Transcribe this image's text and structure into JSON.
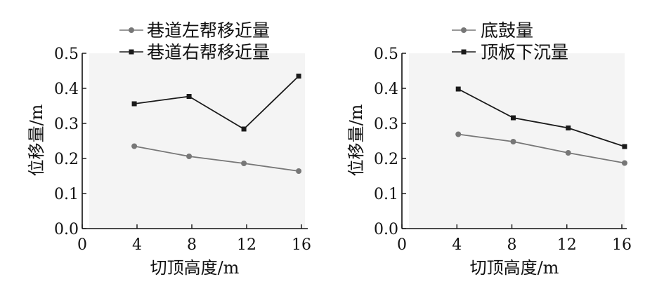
{
  "chart_data": [
    {
      "type": "line",
      "xlabel": "切顶高度/m",
      "ylabel": "位移量/m",
      "xlim": [
        0,
        16
      ],
      "ylim": [
        0.0,
        0.5
      ],
      "xticks": [
        "0",
        "4",
        "8",
        "12",
        "16"
      ],
      "yticks": [
        "0.0",
        "0.1",
        "0.2",
        "0.3",
        "0.4",
        "0.5"
      ],
      "legend_position": "top-left",
      "grid": false,
      "series": [
        {
          "name": "巷道左帮移近量",
          "marker": "circle",
          "color": "#777777",
          "x": [
            3.8,
            7.8,
            11.8,
            15.8
          ],
          "values": [
            0.235,
            0.206,
            0.186,
            0.164
          ]
        },
        {
          "name": "巷道右帮移近量",
          "marker": "square",
          "color": "#1a1a1a",
          "x": [
            3.8,
            7.8,
            11.8,
            15.8
          ],
          "values": [
            0.356,
            0.377,
            0.284,
            0.435
          ]
        }
      ]
    },
    {
      "type": "line",
      "xlabel": "切顶高度/m",
      "ylabel": "位移量/m",
      "xlim": [
        0,
        16
      ],
      "ylim": [
        0.0,
        0.5
      ],
      "xticks": [
        "0",
        "4",
        "8",
        "12",
        "16"
      ],
      "yticks": [
        "0.0",
        "0.1",
        "0.2",
        "0.3",
        "0.4",
        "0.5"
      ],
      "legend_position": "top-left",
      "grid": false,
      "series": [
        {
          "name": "底鼓量",
          "marker": "circle",
          "color": "#777777",
          "x": [
            4.1,
            8.1,
            12.1,
            16.2
          ],
          "values": [
            0.269,
            0.248,
            0.216,
            0.187
          ]
        },
        {
          "name": "顶板下沉量",
          "marker": "square",
          "color": "#1a1a1a",
          "x": [
            4.1,
            8.1,
            12.1,
            16.2
          ],
          "values": [
            0.398,
            0.316,
            0.287,
            0.234
          ]
        }
      ]
    }
  ]
}
